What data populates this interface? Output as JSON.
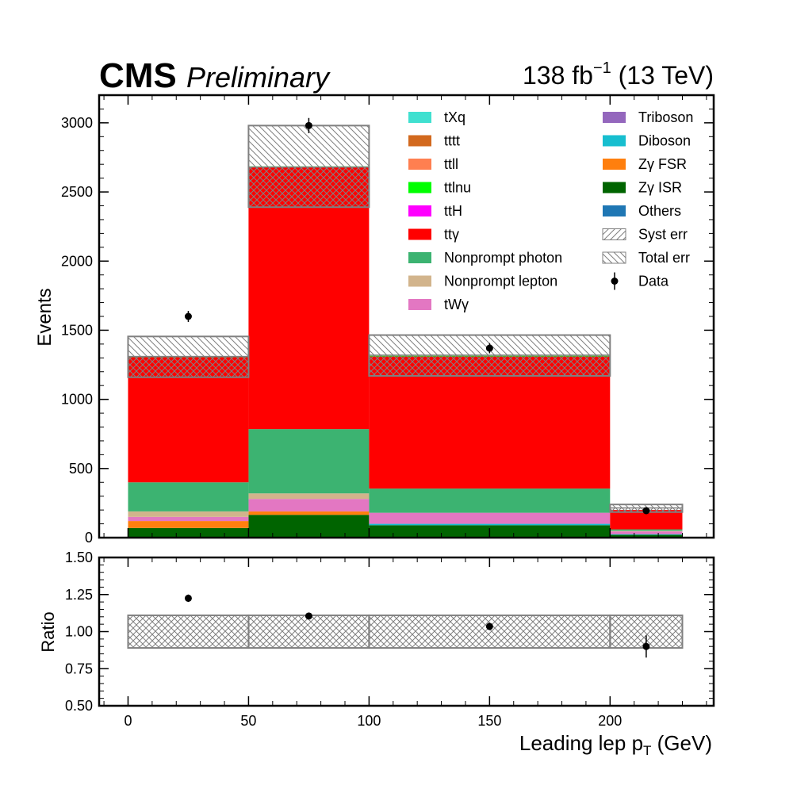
{
  "header": {
    "experiment": "CMS",
    "status": "Preliminary",
    "lumi": "138 fb",
    "lumi_exp": "−1",
    "energy": " (13 TeV)"
  },
  "chart_data": {
    "type": "bar",
    "stacked": true,
    "bin_edges": [
      0,
      50,
      100,
      200,
      230
    ],
    "bin_centers_marker": [
      25,
      75,
      150,
      215
    ],
    "main": {
      "ylabel": "Events",
      "ylim": [
        0,
        3200
      ],
      "yticks": [
        0,
        500,
        1000,
        1500,
        2000,
        2500,
        3000
      ],
      "series": [
        {
          "name": "Others",
          "color": "#1f77b4",
          "values": [
            0,
            0,
            0,
            0
          ]
        },
        {
          "name": "Zγ ISR",
          "color": "#006400",
          "values": [
            70,
            165,
            90,
            20
          ]
        },
        {
          "name": "Zγ FSR",
          "color": "#ff7f0e",
          "values": [
            50,
            25,
            0,
            0
          ]
        },
        {
          "name": "Diboson",
          "color": "#17becf",
          "values": [
            0,
            0,
            10,
            5
          ]
        },
        {
          "name": "Triboson",
          "color": "#9467bd",
          "values": [
            0,
            0,
            0,
            0
          ]
        },
        {
          "name": "tWγ",
          "color": "#e377c2",
          "values": [
            30,
            90,
            80,
            20
          ]
        },
        {
          "name": "Nonprompt lepton",
          "color": "#d2b48c",
          "values": [
            40,
            40,
            0,
            5
          ]
        },
        {
          "name": "Nonprompt photon",
          "color": "#3cb371",
          "values": [
            210,
            465,
            175,
            10
          ]
        },
        {
          "name": "ttγ",
          "color": "#ff0000",
          "values": [
            905,
            1895,
            955,
            140
          ]
        },
        {
          "name": "ttH",
          "color": "#ff00ff",
          "values": [
            0,
            0,
            0,
            0
          ]
        },
        {
          "name": "ttlnu",
          "color": "#00ff00",
          "values": [
            5,
            5,
            5,
            0
          ]
        },
        {
          "name": "ttll",
          "color": "#ff7f50",
          "values": [
            0,
            0,
            0,
            0
          ]
        },
        {
          "name": "tttt",
          "color": "#d2691e",
          "values": [
            0,
            0,
            0,
            0
          ]
        },
        {
          "name": "tXq",
          "color": "#40e0d0",
          "values": [
            0,
            0,
            0,
            0
          ]
        }
      ],
      "syst_band": {
        "low": [
          1160,
          2390,
          1170,
          185
        ],
        "high": [
          1310,
          2680,
          1320,
          215
        ]
      },
      "total_band": {
        "low": [
          1160,
          2390,
          1170,
          185
        ],
        "high": [
          1455,
          2980,
          1465,
          240
        ]
      },
      "data": {
        "name": "Data",
        "values": [
          1600,
          2980,
          1370,
          195
        ],
        "errors": [
          40,
          55,
          37,
          14
        ]
      }
    },
    "ratio": {
      "ylabel": "Ratio",
      "ylim": [
        0.5,
        1.5
      ],
      "yticks": [
        "0.50",
        "0.75",
        "1.00",
        "1.25",
        "1.50"
      ],
      "band": {
        "low": [
          0.89,
          0.89,
          0.89,
          0.89
        ],
        "high": [
          1.11,
          1.11,
          1.11,
          1.11
        ]
      },
      "points": [
        1.225,
        1.105,
        1.035,
        0.9
      ],
      "errors": [
        0.025,
        0.02,
        0.025,
        0.075
      ]
    },
    "xaxis": {
      "label": "Leading lep p",
      "label_sub": "T",
      "label_unit": " (GeV)",
      "xlim": [
        -12,
        243
      ],
      "xticks": [
        0,
        50,
        100,
        150,
        200
      ]
    },
    "legend": {
      "placement": "top-right",
      "col1": [
        "tXq",
        "tttt",
        "ttll",
        "ttlnu",
        "ttH",
        "ttγ",
        "Nonprompt photon",
        "Nonprompt lepton",
        "tWγ"
      ],
      "col2": [
        "Triboson",
        "Diboson",
        "Zγ FSR",
        "Zγ ISR",
        "Others",
        "Syst err",
        "Total err",
        "Data"
      ]
    }
  }
}
